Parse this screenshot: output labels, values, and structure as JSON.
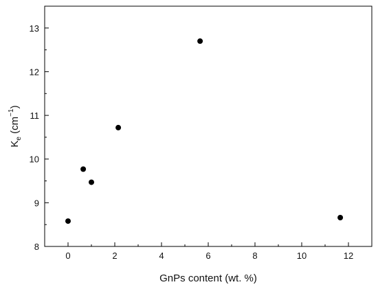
{
  "chart_data": {
    "type": "scatter",
    "xlabel": "GnPs content (wt. %)",
    "ylabel": {
      "base": "K",
      "subscript": "e",
      "unit_open": " (cm",
      "unit_exponent": "−1",
      "unit_close": ")"
    },
    "xlim": [
      -1,
      13
    ],
    "ylim": [
      8,
      13.5
    ],
    "x_ticks": [
      0,
      2,
      4,
      6,
      8,
      10,
      12
    ],
    "y_ticks": [
      8,
      9,
      10,
      11,
      12,
      13
    ],
    "grid": false,
    "marker_color": "#000000",
    "points": [
      {
        "x": 0.0,
        "y": 8.58
      },
      {
        "x": 0.65,
        "y": 9.77
      },
      {
        "x": 1.0,
        "y": 9.47
      },
      {
        "x": 2.15,
        "y": 10.72
      },
      {
        "x": 5.65,
        "y": 12.7
      },
      {
        "x": 11.65,
        "y": 8.66
      }
    ]
  }
}
